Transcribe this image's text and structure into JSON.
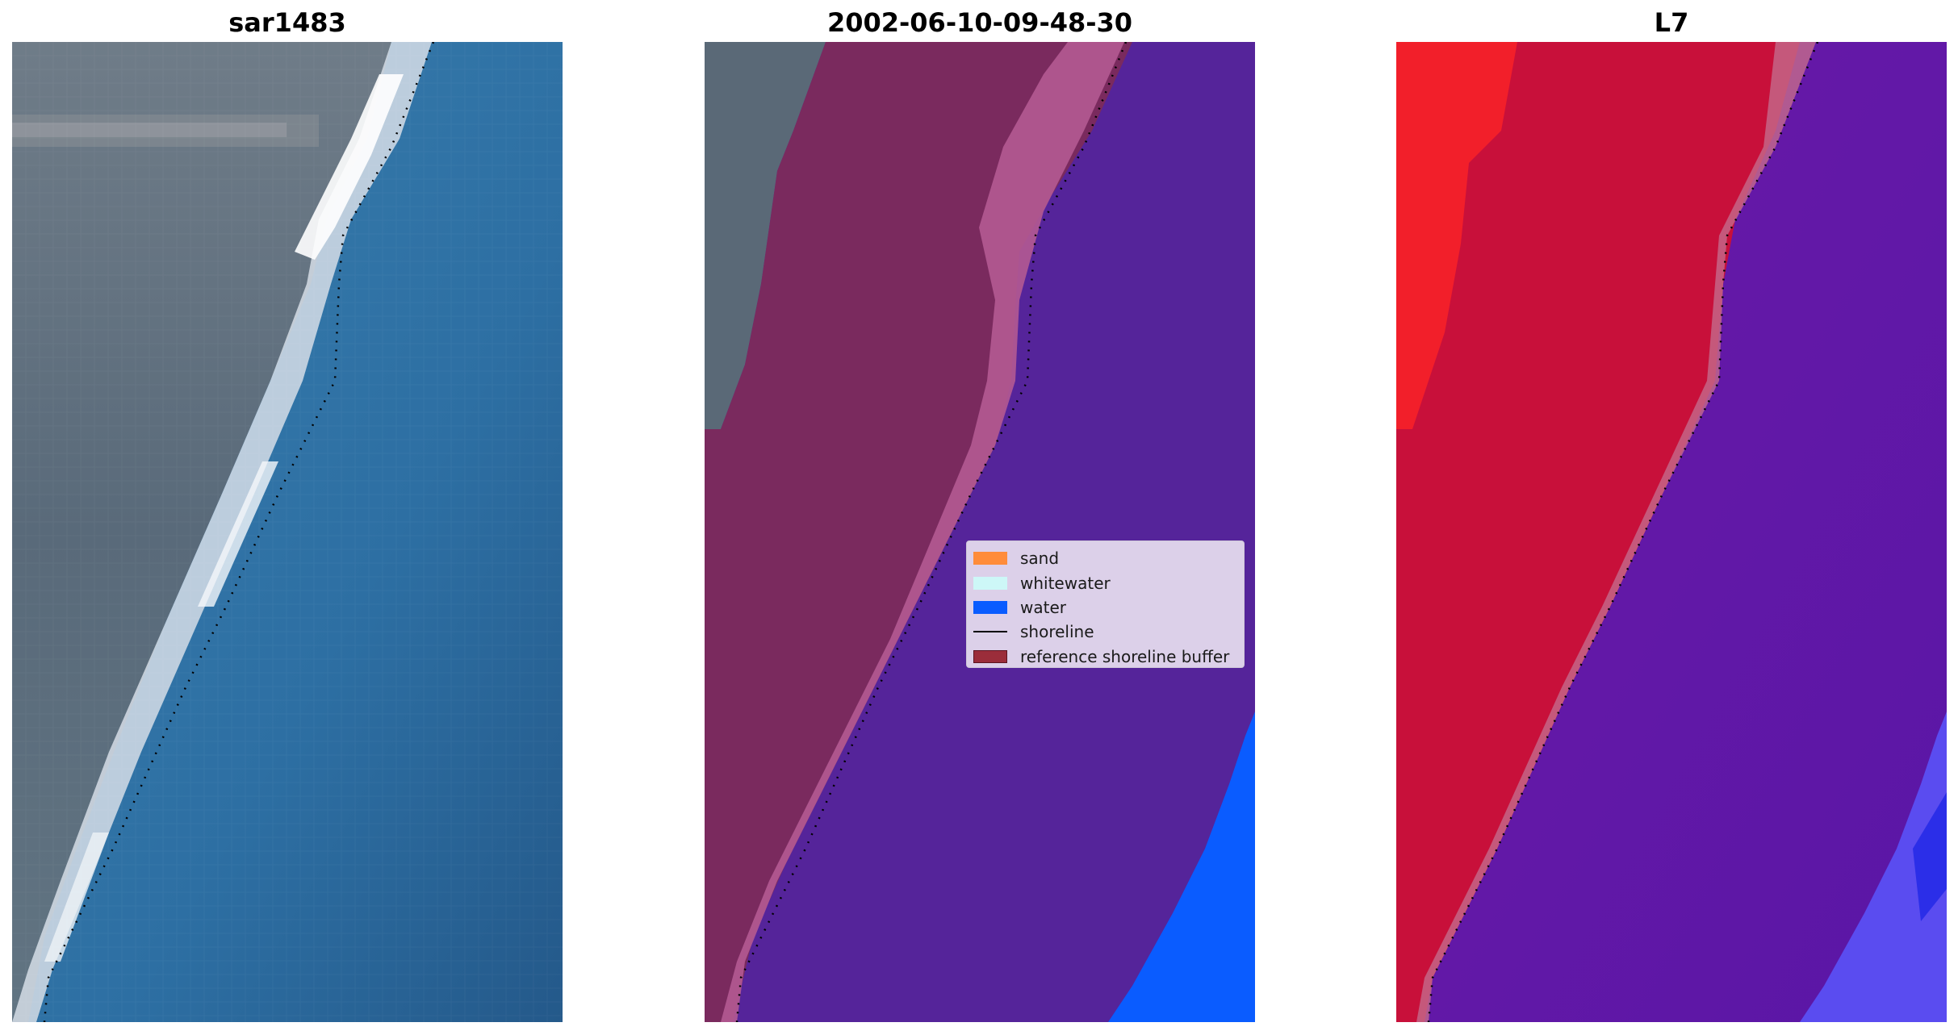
{
  "panels": [
    {
      "title": "sar1483"
    },
    {
      "title": "2002-06-10-09-48-30"
    },
    {
      "title": "L7"
    }
  ],
  "legend": {
    "items": [
      {
        "label": "sand",
        "color": "#ff8c3a",
        "kind": "patch"
      },
      {
        "label": "whitewater",
        "color": "#cdf7f7",
        "kind": "patch"
      },
      {
        "label": "water",
        "color": "#0a5cff",
        "kind": "patch"
      },
      {
        "label": "shoreline",
        "color": "#000000",
        "kind": "line"
      },
      {
        "label": "reference shoreline buffer",
        "color": "#9b2d3a",
        "kind": "patch"
      }
    ]
  },
  "colors": {
    "land_rgb": "#5d6b78",
    "sea_rgb": "#2f6f9f",
    "beach_rgb": "#e6eef4",
    "buffer_overlay": "#7a2a5e",
    "water_overlay": "#55249a",
    "water_class": "#0a5cff",
    "land_index": "#c8103a",
    "water_index": "#6a1aa8"
  }
}
